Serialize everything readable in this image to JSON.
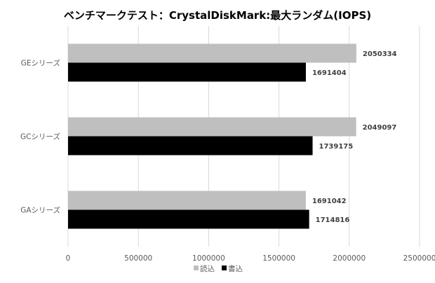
{
  "chart_data": {
    "type": "bar",
    "orientation": "horizontal",
    "title": "ベンチマークテスト：CrystalDiskMark:最大ランダム(IOPS)",
    "categories": [
      "GEシリーズ",
      "GCシリーズ",
      "GAシリーズ"
    ],
    "series": [
      {
        "name": "読込",
        "color": "#bfbfbf",
        "values": [
          2050334,
          2049097,
          1691042
        ]
      },
      {
        "name": "書込",
        "color": "#000000",
        "values": [
          1691404,
          1739175,
          1714816
        ]
      }
    ],
    "xlim": [
      0,
      2500000
    ],
    "xticks": [
      0,
      500000,
      1000000,
      1500000,
      2000000,
      2500000
    ],
    "xlabel": "",
    "ylabel": "",
    "grid": true,
    "legend": "bottom",
    "data_labels": true
  }
}
